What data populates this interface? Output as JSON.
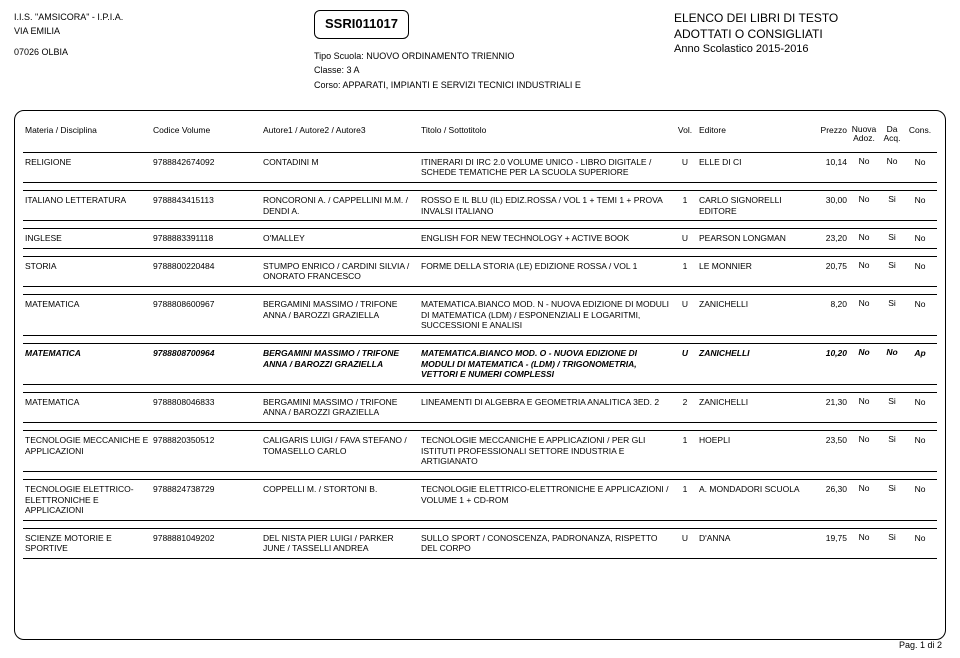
{
  "header": {
    "school_line1": "I.I.S. \"AMSICORA\" - I.P.I.A.",
    "school_line2": "VIA EMILIA",
    "school_line3": "07026  OLBIA",
    "code": "SSRI011017",
    "tipo_label": "Tipo Scuola:",
    "tipo_value": "NUOVO ORDINAMENTO TRIENNIO",
    "classe_label": "Classe:",
    "classe_value": "3 A",
    "corso_label": "Corso:",
    "corso_value": "APPARATI, IMPIANTI E SERVIZI TECNICI INDUSTRIALI E",
    "right1": "ELENCO DEI LIBRI DI TESTO",
    "right2": "ADOTTATI O CONSIGLIATI",
    "right3": "Anno Scolastico 2015-2016"
  },
  "columns": {
    "materia": "Materia / Disciplina",
    "codice_vol": "Codice Volume",
    "autori": "Autore1 / Autore2 / Autore3",
    "titolo": "Titolo / Sottotitolo",
    "vol": "Vol.",
    "editore": "Editore",
    "prezzo": "Prezzo",
    "nuova1": "Nuova",
    "nuova2": "Adoz.",
    "da1": "Da",
    "da2": "Acq.",
    "cons": "Cons."
  },
  "rows": [
    {
      "materia": "RELIGIONE",
      "codice": "9788842674092",
      "autori": "CONTADINI M",
      "titolo": "ITINERARI DI IRC 2.0 VOLUME UNICO - LIBRO DIGITALE / SCHEDE TEMATICHE PER LA SCUOLA SUPERIORE",
      "vol": "U",
      "editore": "ELLE DI CI",
      "prezzo": "10,14",
      "nuova": "No",
      "da": "No",
      "cons": "No",
      "bold": false
    },
    {
      "materia": "ITALIANO LETTERATURA",
      "codice": "9788843415113",
      "autori": "RONCORONI A. / CAPPELLINI M.M. / DENDI A.",
      "titolo": "ROSSO E IL BLU (IL) EDIZ.ROSSA / VOL 1 + TEMI 1 + PROVA INVALSI ITALIANO",
      "vol": "1",
      "editore": "CARLO SIGNORELLI EDITORE",
      "prezzo": "30,00",
      "nuova": "No",
      "da": "Si",
      "cons": "No",
      "bold": false
    },
    {
      "materia": "INGLESE",
      "codice": "9788883391118",
      "autori": "O'MALLEY",
      "titolo": "ENGLISH FOR NEW TECHNOLOGY + ACTIVE BOOK",
      "vol": "U",
      "editore": "PEARSON LONGMAN",
      "prezzo": "23,20",
      "nuova": "No",
      "da": "Si",
      "cons": "No",
      "bold": false
    },
    {
      "materia": "STORIA",
      "codice": "9788800220484",
      "autori": "STUMPO ENRICO / CARDINI SILVIA / ONORATO FRANCESCO",
      "titolo": "FORME DELLA STORIA (LE) EDIZIONE ROSSA / VOL 1",
      "vol": "1",
      "editore": "LE MONNIER",
      "prezzo": "20,75",
      "nuova": "No",
      "da": "Si",
      "cons": "No",
      "bold": false
    },
    {
      "materia": "MATEMATICA",
      "codice": "9788808600967",
      "autori": "BERGAMINI MASSIMO / TRIFONE ANNA / BAROZZI GRAZIELLA",
      "titolo": "MATEMATICA.BIANCO MOD. N - NUOVA EDIZIONE DI MODULI DI MATEMATICA (LDM) / ESPONENZIALI E LOGARITMI, SUCCESSIONI E ANALISI",
      "vol": "U",
      "editore": "ZANICHELLI",
      "prezzo": "8,20",
      "nuova": "No",
      "da": "Si",
      "cons": "No",
      "bold": false
    },
    {
      "materia": "MATEMATICA",
      "codice": "9788808700964",
      "autori": "BERGAMINI MASSIMO / TRIFONE ANNA / BAROZZI GRAZIELLA",
      "titolo": "MATEMATICA.BIANCO MOD. O - NUOVA EDIZIONE DI MODULI DI MATEMATICA - (LDM) / TRIGONOMETRIA, VETTORI E NUMERI COMPLESSI",
      "vol": "U",
      "editore": "ZANICHELLI",
      "prezzo": "10,20",
      "nuova": "No",
      "da": "No",
      "cons": "Ap",
      "bold": true
    },
    {
      "materia": "MATEMATICA",
      "codice": "9788808046833",
      "autori": "BERGAMINI MASSIMO / TRIFONE ANNA / BAROZZI GRAZIELLA",
      "titolo": "LINEAMENTI DI ALGEBRA E GEOMETRIA ANALITICA 3ED. 2",
      "vol": "2",
      "editore": "ZANICHELLI",
      "prezzo": "21,30",
      "nuova": "No",
      "da": "Si",
      "cons": "No",
      "bold": false
    },
    {
      "materia": "TECNOLOGIE MECCANICHE E APPLICAZIONI",
      "codice": "9788820350512",
      "autori": "CALIGARIS LUIGI / FAVA STEFANO / TOMASELLO CARLO",
      "titolo": "TECNOLOGIE MECCANICHE E APPLICAZIONI / PER GLI ISTITUTI PROFESSIONALI SETTORE INDUSTRIA E ARTIGIANATO",
      "vol": "1",
      "editore": "HOEPLI",
      "prezzo": "23,50",
      "nuova": "No",
      "da": "Si",
      "cons": "No",
      "bold": false
    },
    {
      "materia": "TECNOLOGIE ELETTRICO-ELETTRONICHE E APPLICAZIONI",
      "codice": "9788824738729",
      "autori": "COPPELLI M. / STORTONI B.",
      "titolo": "TECNOLOGIE ELETTRICO-ELETTRONICHE E APPLICAZIONI / VOLUME 1 + CD-ROM",
      "vol": "1",
      "editore": "A. MONDADORI SCUOLA",
      "prezzo": "26,30",
      "nuova": "No",
      "da": "Si",
      "cons": "No",
      "bold": false
    },
    {
      "materia": "SCIENZE MOTORIE E SPORTIVE",
      "codice": "9788881049202",
      "autori": "DEL NISTA PIER LUIGI / PARKER JUNE / TASSELLI ANDREA",
      "titolo": "SULLO SPORT / CONOSCENZA, PADRONANZA, RISPETTO DEL CORPO",
      "vol": "U",
      "editore": "D'ANNA",
      "prezzo": "19,75",
      "nuova": "No",
      "da": "Si",
      "cons": "No",
      "bold": false
    }
  ],
  "footer": "Pag. 1 di 2"
}
